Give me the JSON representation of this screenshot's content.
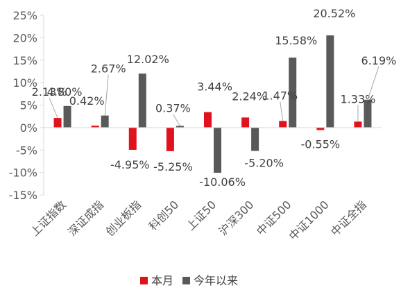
{
  "chart_data": {
    "type": "bar",
    "categories": [
      "上证指数",
      "深证成指",
      "创业板指",
      "科创50",
      "上证50",
      "沪深300",
      "中证500",
      "中证1000",
      "中证全指"
    ],
    "series": [
      {
        "name": "本月",
        "color": "#e0121e",
        "values": [
          2.13,
          0.42,
          -4.95,
          -5.25,
          3.44,
          2.24,
          1.47,
          -0.55,
          1.33
        ],
        "labels": [
          "2.13%",
          "0.42%",
          "-4.95%",
          "-5.25%",
          "3.44%",
          "2.24%",
          "1.47%",
          "-0.55%",
          "1.33%"
        ]
      },
      {
        "name": "今年以来",
        "color": "#595959",
        "values": [
          4.8,
          2.67,
          12.02,
          0.37,
          -10.06,
          -5.2,
          15.58,
          20.52,
          6.19
        ],
        "labels": [
          "4.80%",
          "2.67%",
          "12.02%",
          "0.37%",
          "-10.06%",
          "-5.20%",
          "15.58%",
          "20.52%",
          "6.19%"
        ]
      }
    ],
    "ylim": [
      -15,
      25
    ],
    "yticks": [
      25,
      20,
      15,
      10,
      5,
      0,
      -5,
      -10,
      -15
    ],
    "ytick_labels": [
      "25%",
      "20%",
      "15%",
      "10%",
      "5%",
      "0%",
      "-5%",
      "-10%",
      "-15%"
    ],
    "legend_position": "bottom",
    "grid": false
  }
}
